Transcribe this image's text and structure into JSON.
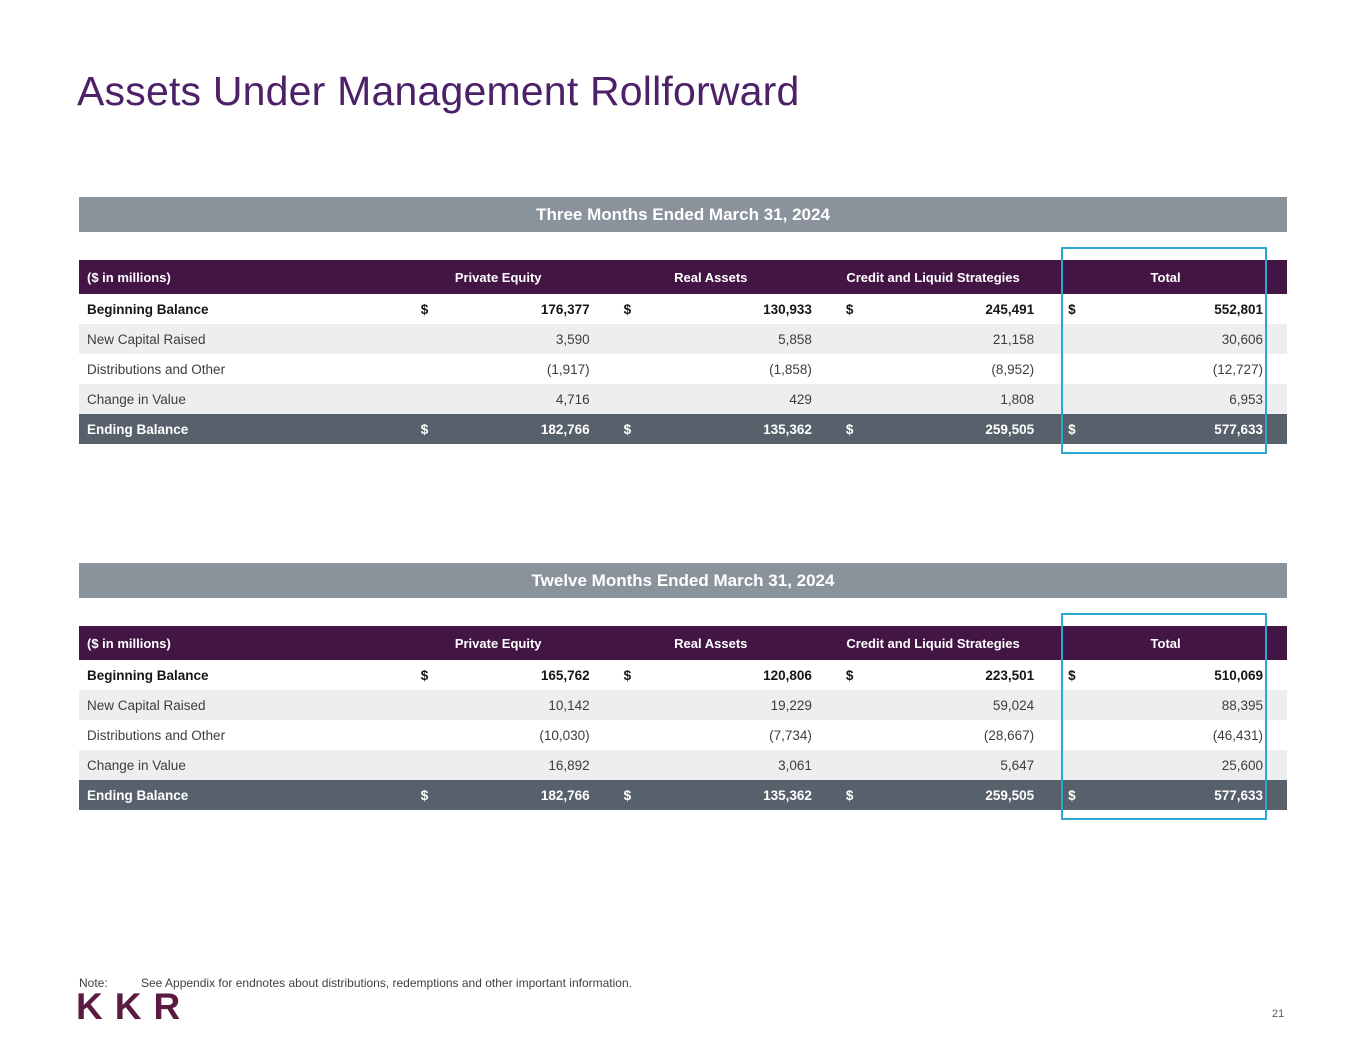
{
  "page": {
    "title": "Assets Under Management Rollforward",
    "currency_symbol": "$",
    "note_label": "Note:",
    "note_text": "See Appendix for endnotes about distributions, redemptions and other important information.",
    "page_number": "21",
    "logo_text": "KKR"
  },
  "colors": {
    "title_purple": "#4C2168",
    "band_gray": "#8A939C",
    "header_purple": "#431545",
    "ending_row_slate": "#57616B",
    "stripe_gray": "#EDEEEF",
    "total_highlight_blue": "#2BA9CF",
    "logo_maroon": "#5A1A41"
  },
  "tables": [
    {
      "period_title": "Three Months Ended March 31, 2024",
      "columns": [
        "($ in millions)",
        "Private Equity",
        "Real Assets",
        "Credit and Liquid Strategies",
        "Total"
      ],
      "rows": [
        {
          "label": "Beginning Balance",
          "values": [
            "176,377",
            "130,933",
            "245,491",
            "552,801"
          ]
        },
        {
          "label": "New Capital Raised",
          "values": [
            "3,590",
            "5,858",
            "21,158",
            "30,606"
          ]
        },
        {
          "label": "Distributions and Other",
          "values": [
            "(1,917)",
            "(1,858)",
            "(8,952)",
            "(12,727)"
          ]
        },
        {
          "label": "Change in Value",
          "values": [
            "4,716",
            "429",
            "1,808",
            "6,953"
          ]
        },
        {
          "label": "Ending Balance",
          "values": [
            "182,766",
            "135,362",
            "259,505",
            "577,633"
          ]
        }
      ]
    },
    {
      "period_title": "Twelve Months Ended March 31, 2024",
      "columns": [
        "($ in millions)",
        "Private Equity",
        "Real Assets",
        "Credit and Liquid Strategies",
        "Total"
      ],
      "rows": [
        {
          "label": "Beginning Balance",
          "values": [
            "165,762",
            "120,806",
            "223,501",
            "510,069"
          ]
        },
        {
          "label": "New Capital Raised",
          "values": [
            "10,142",
            "19,229",
            "59,024",
            "88,395"
          ]
        },
        {
          "label": "Distributions and Other",
          "values": [
            "(10,030)",
            "(7,734)",
            "(28,667)",
            "(46,431)"
          ]
        },
        {
          "label": "Change in Value",
          "values": [
            "16,892",
            "3,061",
            "5,647",
            "25,600"
          ]
        },
        {
          "label": "Ending Balance",
          "values": [
            "182,766",
            "135,362",
            "259,505",
            "577,633"
          ]
        }
      ]
    }
  ]
}
